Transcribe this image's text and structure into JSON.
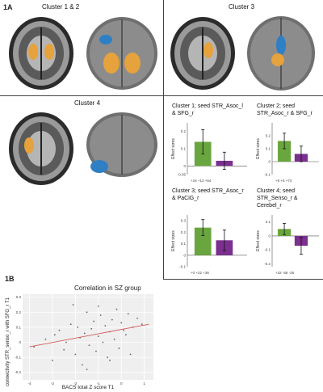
{
  "figure": {
    "panel_1a": "1A",
    "panel_1b": "1B",
    "clusters": [
      {
        "label": "Cluster 1 & 2"
      },
      {
        "label": "Cluster 3"
      },
      {
        "label": "Cluster 4"
      }
    ],
    "colors": {
      "green": "#6aa63f",
      "purple": "#7b2f8f",
      "orange": "#e6a23c",
      "blue": "#2f7fc4",
      "red": "#d45a5a"
    }
  },
  "bar_charts": [
    {
      "title": "Cluster 1; seed STR_Asoc_l & SFG_r",
      "ylabel": "Effect sizes",
      "ticks": [
        "0.2",
        "0.1",
        "0",
        "-0.05"
      ],
      "coords": "+16 +12 +64"
    },
    {
      "title": "Cluster 2; seed STR_Asoc_r & SFG_r",
      "ylabel": "Effect sizes",
      "ticks": [
        "0.2",
        "0.1",
        "0",
        "-0.1"
      ],
      "coords": "+6 +6 +74"
    },
    {
      "title": "Cluster 3; seed STR_Asoc_r & PaCiG_r",
      "ylabel": "Effect sizes",
      "ticks": [
        "0.3",
        "0.2",
        "0.1",
        "0",
        "-0.1"
      ],
      "coords": "+0 +22 +36"
    },
    {
      "title": "Cluster 4; seed STR_Senso_r & Cerebel_r",
      "ylabel": "Effect sizes",
      "ticks": [
        "0.1",
        "0",
        "-0.1",
        "-0.2"
      ],
      "coords": "+32 -58 -26"
    }
  ],
  "scatter": {
    "title": "Correlation in SZ group",
    "ylabel": "connectivity STR_senso_r with SFG_r T1",
    "xlabel": "BACS total Z score T1",
    "x_ticks": [
      "-4",
      "-3",
      "-2",
      "-1",
      "0",
      "1"
    ],
    "y_ticks": [
      "0.3",
      "0.2",
      "0.1",
      "0",
      "-0.1",
      "-0.2"
    ]
  },
  "chart_data": [
    {
      "type": "bar",
      "categories": [
        "green",
        "purple"
      ],
      "values": [
        0.14,
        0.03
      ],
      "errors": [
        0.07,
        0.05
      ],
      "ylim": [
        -0.05,
        0.25
      ]
    },
    {
      "type": "bar",
      "categories": [
        "green",
        "purple"
      ],
      "values": [
        0.16,
        0.06
      ],
      "errors": [
        0.06,
        0.06
      ],
      "ylim": [
        -0.1,
        0.3
      ]
    },
    {
      "type": "bar",
      "categories": [
        "green",
        "purple"
      ],
      "values": [
        0.24,
        0.13
      ],
      "errors": [
        0.07,
        0.09
      ],
      "ylim": [
        -0.1,
        0.35
      ]
    },
    {
      "type": "bar",
      "categories": [
        "green",
        "purple"
      ],
      "values": [
        0.05,
        -0.07
      ],
      "errors": [
        0.04,
        0.06
      ],
      "ylim": [
        -0.22,
        0.15
      ]
    },
    {
      "type": "scatter",
      "x": [
        -3.8,
        -3.3,
        -3.0,
        -2.9,
        -2.7,
        -2.5,
        -2.4,
        -2.2,
        -2.0,
        -1.9,
        -1.8,
        -1.7,
        -1.6,
        -1.5,
        -1.4,
        -1.3,
        -1.2,
        -1.1,
        -1.0,
        -0.9,
        -0.8,
        -0.7,
        -0.6,
        -0.5,
        -0.4,
        -0.3,
        -0.2,
        -0.1,
        0.0,
        0.1,
        0.2,
        0.3,
        0.5,
        0.7,
        0.9,
        -1.5,
        -0.5,
        -2.1,
        -1.0,
        0.4
      ],
      "y": [
        -0.03,
        0.02,
        -0.12,
        0.05,
        0.08,
        -0.05,
        0.0,
        0.12,
        -0.08,
        0.1,
        0.03,
        -0.15,
        0.06,
        0.2,
        -0.02,
        0.09,
        0.14,
        -0.06,
        0.04,
        0.18,
        0.0,
        0.11,
        -0.1,
        0.07,
        0.15,
        0.02,
        0.22,
        -0.04,
        0.13,
        0.08,
        0.05,
        0.19,
        0.1,
        0.16,
        0.12,
        -0.18,
        -0.12,
        0.25,
        0.24,
        -0.08
      ],
      "fit": [
        [
          -4.0,
          -0.03
        ],
        [
          1.2,
          0.12
        ]
      ],
      "xlim": [
        -4.3,
        1.4
      ],
      "ylim": [
        -0.25,
        0.32
      ]
    }
  ]
}
